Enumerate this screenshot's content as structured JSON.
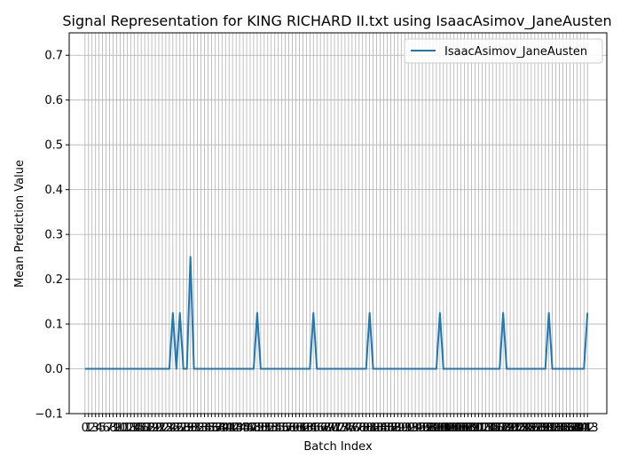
{
  "chart_data": {
    "type": "line",
    "title": "Signal Representation for KING RICHARD II.txt using IsaacAsimov_JaneAusten",
    "xlabel": "Batch Index",
    "ylabel": "Mean Prediction Value",
    "xlim": [
      -4.5,
      148.5
    ],
    "ylim": [
      -0.1,
      0.75
    ],
    "yticks": [
      -0.1,
      0.0,
      0.1,
      0.2,
      0.3,
      0.4,
      0.5,
      0.6,
      0.7
    ],
    "ytick_labels": [
      "−0.1",
      "0.0",
      "0.1",
      "0.2",
      "0.3",
      "0.4",
      "0.5",
      "0.6",
      "0.7"
    ],
    "grid": true,
    "legend_position": "top-right",
    "x_count": 144,
    "series": [
      {
        "name": "IsaacAsimov_JaneAusten",
        "color": "#1f77b4",
        "peaks": [
          {
            "x": 25,
            "y": 0.125
          },
          {
            "x": 27,
            "y": 0.125
          },
          {
            "x": 30,
            "y": 0.25
          },
          {
            "x": 49,
            "y": 0.125
          },
          {
            "x": 65,
            "y": 0.125
          },
          {
            "x": 81,
            "y": 0.125
          },
          {
            "x": 101,
            "y": 0.125
          },
          {
            "x": 119,
            "y": 0.125
          },
          {
            "x": 132,
            "y": 0.125
          },
          {
            "x": 143,
            "y": 0.125
          }
        ],
        "baseline": 0.0
      }
    ]
  }
}
